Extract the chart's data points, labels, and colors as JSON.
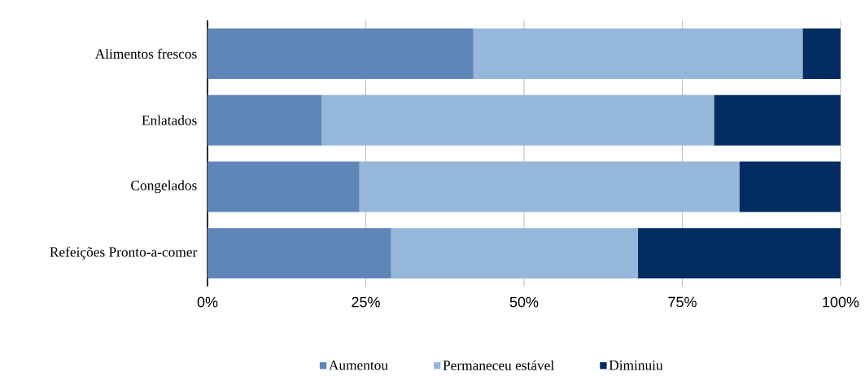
{
  "chart_data": {
    "type": "bar",
    "orientation": "horizontal",
    "stacked": true,
    "categories": [
      "Alimentos frescos",
      "Enlatados",
      "Congelados",
      "Refeições Pronto-a-comer"
    ],
    "series": [
      {
        "name": "Aumentou",
        "color": "#5e86b8",
        "values": [
          42,
          18,
          24,
          29
        ]
      },
      {
        "name": "Permaneceu estável",
        "color": "#95b8da",
        "values": [
          52,
          62,
          60,
          39
        ]
      },
      {
        "name": "Diminuiu",
        "color": "#002c62",
        "values": [
          6,
          20,
          16,
          32
        ]
      }
    ],
    "xlim": [
      0,
      100
    ],
    "xticks": [
      {
        "value": 0,
        "label": "0%"
      },
      {
        "value": 25,
        "label": "25%"
      },
      {
        "value": 50,
        "label": "50%"
      },
      {
        "value": 75,
        "label": "75%"
      },
      {
        "value": 100,
        "label": "100%"
      }
    ],
    "grid": "x",
    "legend": "bottom"
  }
}
